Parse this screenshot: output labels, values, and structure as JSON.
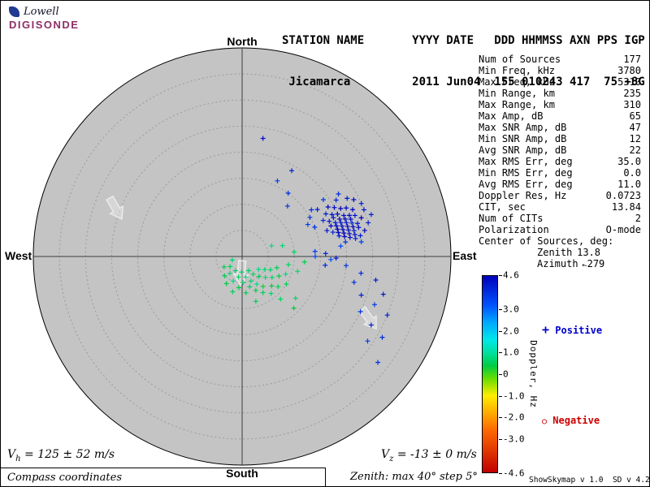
{
  "logo": {
    "name_top": "Lowell",
    "name_bottom": "DIGISONDE"
  },
  "header": {
    "line1": "STATION NAME       YYYY DATE   DDD HHMMSS AXN PPS IGP",
    "line2": " Jicamarca         2011 Jun04  155 010243 417  75 +8G"
  },
  "compass": {
    "north": "North",
    "south": "South",
    "west": "West",
    "east": "East"
  },
  "info": {
    "azimuth_arrow_glyph": "↑",
    "rows": [
      {
        "label": "Num of Sources",
        "value": "177"
      },
      {
        "label": "Min Freq, kHz",
        "value": "3780"
      },
      {
        "label": "Max Freq, kHz",
        "value": "5310"
      },
      {
        "label": "Min Range, km",
        "value": "235"
      },
      {
        "label": "Max Range, km",
        "value": "310"
      },
      {
        "label": "Max Amp, dB",
        "value": "65"
      },
      {
        "label": "Max SNR Amp, dB",
        "value": "47"
      },
      {
        "label": "Min SNR Amp, dB",
        "value": "12"
      },
      {
        "label": "Avg SNR Amp, dB",
        "value": "22"
      },
      {
        "label": "Max RMS Err, deg",
        "value": "35.0"
      },
      {
        "label": "Min RMS Err, deg",
        "value": "0.0"
      },
      {
        "label": "Avg RMS Err, deg",
        "value": "11.0"
      },
      {
        "label": "Doppler Res, Hz",
        "value": "0.0723"
      },
      {
        "label": "CIT, sec",
        "value": "13.84"
      },
      {
        "label": "Num of CITs",
        "value": "2"
      },
      {
        "label": "Polarization",
        "value": "O-mode"
      },
      {
        "label": "Center of Sources, deg:",
        "value": ""
      },
      {
        "label": "Zenith",
        "value": "13.8",
        "sub": true
      },
      {
        "label": "Azimuth",
        "value": "279",
        "sub": true,
        "arrow": true
      }
    ]
  },
  "legend": {
    "positive_marker": "+",
    "positive_label": "Positive",
    "positive_color": "#0000cc",
    "negative_marker": "○",
    "negative_label": "Negative",
    "negative_color": "#cc0000"
  },
  "bottom": {
    "vh": {
      "var": "V",
      "sub": "h",
      "rest": "= 125 ± 52 m/s"
    },
    "vz": {
      "var": "V",
      "sub": "z",
      "rest": "= -13 ± 0 m/s"
    },
    "coords_note": "Compass coordinates",
    "zenith_note": "Zenith: max 40° step 5°",
    "version": "ShowSkymap v 1.0  SD v 4.2"
  },
  "colors": {
    "map_bg": "#c4c4c4",
    "ring": "#9a9a9a",
    "axis": "#3c3c3c",
    "digisonde": "#8c2f68"
  },
  "chart_data": {
    "type": "scatter",
    "projection": "polar skymap (compass coordinates)",
    "title": "Digisonde drift skymap, Jicamarca 2011 Jun04 010243",
    "zenith_max_deg": 40,
    "zenith_step_deg": 5,
    "colorbar": {
      "label": "Doppler, Hz",
      "min": -4.6,
      "max": 4.6,
      "ticks": [
        {
          "v": 4.6,
          "label": "4.6"
        },
        {
          "v": 3.0,
          "label": "3.0"
        },
        {
          "v": 2.0,
          "label": "2.0"
        },
        {
          "v": 1.0,
          "label": "1.0"
        },
        {
          "v": 0,
          "label": "0"
        },
        {
          "v": -1.0,
          "label": "-1.0"
        },
        {
          "v": -2.0,
          "label": "-2.0"
        },
        {
          "v": -3.0,
          "label": "-3.0"
        },
        {
          "v": -4.6,
          "label": "-4.6"
        }
      ],
      "stops": [
        [
          -4.6,
          "#c00000"
        ],
        [
          -2.6,
          "#ff6a00"
        ],
        [
          -1.0,
          "#ffee00"
        ],
        [
          -0.2,
          "#66dd00"
        ],
        [
          0.4,
          "#00cc44"
        ],
        [
          1.0,
          "#00e0a0"
        ],
        [
          1.6,
          "#00e8e8"
        ],
        [
          2.4,
          "#00aaff"
        ],
        [
          3.2,
          "#0055ff"
        ],
        [
          4.6,
          "#0000bb"
        ]
      ]
    },
    "points_format": [
      "azimuth_deg",
      "zenith_deg",
      "doppler_hz"
    ],
    "points": [
      [
        58,
        17,
        4.2
      ],
      [
        60,
        19,
        4.5
      ],
      [
        62,
        20,
        4.4
      ],
      [
        63,
        18,
        4.1
      ],
      [
        64,
        21,
        4.6
      ],
      [
        65,
        19,
        4.3
      ],
      [
        65,
        22,
        4.5
      ],
      [
        66,
        17,
        4.0
      ],
      [
        66,
        20,
        4.4
      ],
      [
        67,
        23,
        4.6
      ],
      [
        67,
        19,
        4.2
      ],
      [
        68,
        21,
        4.5
      ],
      [
        68,
        18,
        4.3
      ],
      [
        69,
        20,
        4.6
      ],
      [
        69,
        22,
        4.4
      ],
      [
        70,
        19,
        4.1
      ],
      [
        70,
        21,
        4.5
      ],
      [
        70,
        23,
        4.3
      ],
      [
        71,
        18,
        4.6
      ],
      [
        71,
        20,
        4.2
      ],
      [
        71,
        22,
        4.4
      ],
      [
        72,
        19,
        4.5
      ],
      [
        72,
        21,
        4.3
      ],
      [
        72,
        24,
        4.6
      ],
      [
        73,
        20,
        4.4
      ],
      [
        73,
        22,
        4.1
      ],
      [
        73,
        17,
        4.3
      ],
      [
        74,
        21,
        4.5
      ],
      [
        74,
        19,
        4.6
      ],
      [
        74,
        23,
        4.2
      ],
      [
        75,
        20,
        4.4
      ],
      [
        75,
        22,
        4.6
      ],
      [
        75,
        18,
        4.0
      ],
      [
        76,
        21,
        4.3
      ],
      [
        76,
        19,
        4.5
      ],
      [
        76,
        23,
        4.4
      ],
      [
        77,
        20,
        4.6
      ],
      [
        77,
        22,
        4.2
      ],
      [
        78,
        21,
        4.4
      ],
      [
        78,
        19,
        4.1
      ],
      [
        78,
        24,
        4.5
      ],
      [
        79,
        22,
        4.3
      ],
      [
        79,
        20,
        4.6
      ],
      [
        80,
        23,
        4.2
      ],
      [
        80,
        21,
        4.4
      ],
      [
        81,
        22,
        4.0
      ],
      [
        56,
        16,
        3.9
      ],
      [
        59,
        21,
        4.0
      ],
      [
        61,
        23,
        4.2
      ],
      [
        63,
        24,
        4.4
      ],
      [
        66,
        25,
        4.1
      ],
      [
        69,
        25,
        4.3
      ],
      [
        72,
        26,
        4.0
      ],
      [
        75,
        25,
        4.2
      ],
      [
        60,
        15,
        3.8
      ],
      [
        64,
        14,
        3.6
      ],
      [
        68,
        15,
        3.9
      ],
      [
        55,
        19,
        3.7
      ],
      [
        57,
        22,
        3.9
      ],
      [
        82,
        20,
        3.8
      ],
      [
        83,
        23,
        3.6
      ],
      [
        84,
        19,
        3.5
      ],
      [
        10,
        23,
        4.4
      ],
      [
        36,
        15,
        3.9
      ],
      [
        42,
        13,
        3.7
      ],
      [
        30,
        19,
        4.0
      ],
      [
        25,
        16,
        3.6
      ],
      [
        88,
        16,
        4.0
      ],
      [
        91,
        18,
        4.2
      ],
      [
        86,
        14,
        3.7
      ],
      [
        92,
        17,
        3.4
      ],
      [
        95,
        20,
        3.8
      ],
      [
        98,
        23,
        4.0
      ],
      [
        100,
        26,
        4.2
      ],
      [
        103,
        22,
        3.9
      ],
      [
        105,
        28,
        4.3
      ],
      [
        108,
        24,
        4.1
      ],
      [
        110,
        27,
        3.7
      ],
      [
        112,
        30,
        4.0
      ],
      [
        115,
        25,
        3.8
      ],
      [
        118,
        28,
        4.2
      ],
      [
        120,
        31,
        3.9
      ],
      [
        124,
        29,
        3.6
      ],
      [
        128,
        33,
        3.8
      ],
      [
        90,
        14,
        3.5
      ],
      [
        96,
        16,
        3.9
      ],
      [
        100,
        9,
        0.6
      ],
      [
        105,
        11,
        0.7
      ],
      [
        108,
        7,
        0.5
      ],
      [
        112,
        9,
        0.8
      ],
      [
        115,
        6,
        0.6
      ],
      [
        118,
        8,
        0.4
      ],
      [
        120,
        5,
        0.7
      ],
      [
        122,
        10,
        0.5
      ],
      [
        125,
        7,
        0.6
      ],
      [
        128,
        4,
        0.8
      ],
      [
        130,
        9,
        0.5
      ],
      [
        132,
        6,
        0.7
      ],
      [
        135,
        8,
        0.4
      ],
      [
        138,
        11,
        0.6
      ],
      [
        140,
        5,
        0.5
      ],
      [
        142,
        9,
        0.7
      ],
      [
        145,
        7,
        0.3
      ],
      [
        148,
        4,
        0.6
      ],
      [
        150,
        8,
        0.5
      ],
      [
        152,
        6,
        0.8
      ],
      [
        155,
        3,
        0.6
      ],
      [
        158,
        7,
        0.4
      ],
      [
        160,
        5,
        0.7
      ],
      [
        163,
        9,
        0.5
      ],
      [
        166,
        6,
        0.6
      ],
      [
        170,
        4,
        0.8
      ],
      [
        174,
        7,
        0.5
      ],
      [
        178,
        5,
        0.6
      ],
      [
        182,
        3,
        0.7
      ],
      [
        186,
        6,
        0.4
      ],
      [
        190,
        4,
        0.6
      ],
      [
        195,
        7,
        0.5
      ],
      [
        200,
        5,
        0.8
      ],
      [
        205,
        3,
        0.6
      ],
      [
        210,
        6,
        0.4
      ],
      [
        216,
        4,
        0.7
      ],
      [
        222,
        5,
        0.5
      ],
      [
        230,
        3,
        0.6
      ],
      [
        240,
        4,
        0.5
      ],
      [
        250,
        2,
        0.7
      ],
      [
        75,
        8,
        0.7
      ],
      [
        85,
        10,
        0.6
      ],
      [
        95,
        12,
        0.5
      ],
      [
        128,
        13,
        0.6
      ],
      [
        135,
        14,
        0.4
      ],
      [
        70,
        6,
        0.8
      ]
    ],
    "arrows": [
      {
        "azimuth_deg": 291,
        "zenith_deg": 26,
        "heading_deg": 150
      },
      {
        "azimuth_deg": 183,
        "zenith_deg": 3,
        "heading_deg": 185
      },
      {
        "azimuth_deg": 116,
        "zenith_deg": 27,
        "heading_deg": 145
      }
    ]
  }
}
